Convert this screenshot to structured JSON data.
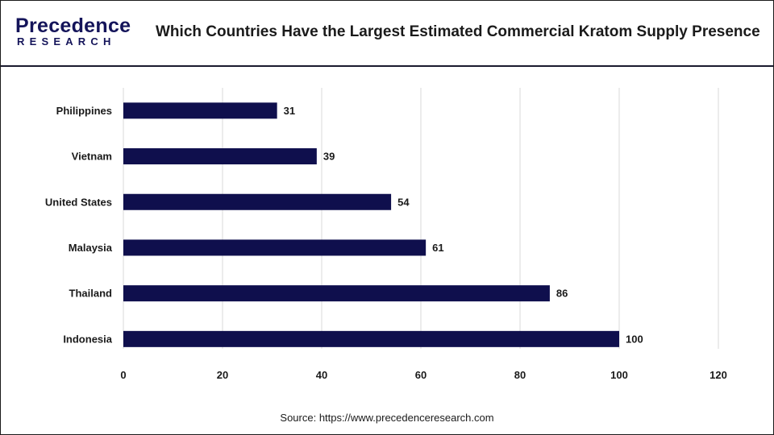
{
  "header": {
    "logo_top": "Precedence",
    "logo_bottom": "RESEARCH",
    "title": "Which Countries Have the Largest Estimated Commercial Kratom Supply Presence"
  },
  "footer": {
    "source": "Source: https://www.precedenceresearch.com"
  },
  "colors": {
    "bar": "#0f0f4d",
    "grid": "#d9d9d9",
    "text": "#1a1a1a",
    "brand": "#14145a"
  },
  "chart_data": {
    "type": "bar",
    "orientation": "horizontal",
    "categories": [
      "Philippines",
      "Vietnam",
      "United States",
      "Malaysia",
      "Thailand",
      "Indonesia"
    ],
    "values": [
      31,
      39,
      54,
      61,
      86,
      100
    ],
    "xlim": [
      0,
      120
    ],
    "xticks": [
      0,
      20,
      40,
      60,
      80,
      100,
      120
    ],
    "grid": true,
    "legend": "none"
  }
}
